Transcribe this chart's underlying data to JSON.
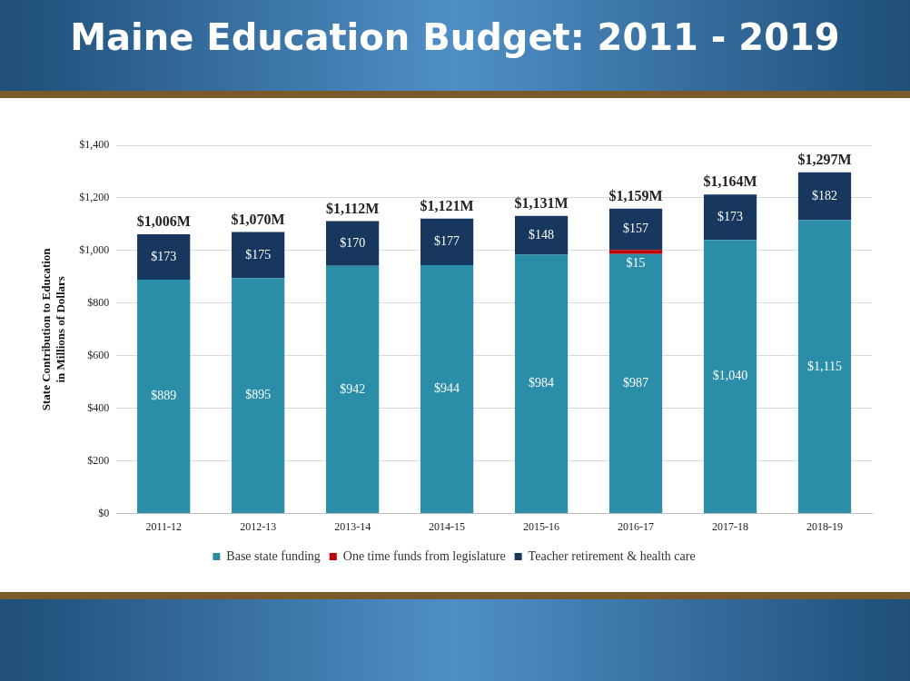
{
  "chart_data": {
    "type": "bar",
    "title": "Maine Education Budget: 2011 - 2019",
    "ylabel": "State Contribution to Education\nin Millions of Dollars",
    "stacked": true,
    "grid": "y",
    "legend": "bottom",
    "categories": [
      "2011-12",
      "2012-13",
      "2013-14",
      "2014-15",
      "2015-16",
      "2016-17",
      "2017-18",
      "2018-19"
    ],
    "ylim": [
      0,
      1400
    ],
    "yticks": [
      {
        "value": 0,
        "label": "$0"
      },
      {
        "value": 200,
        "label": "$200"
      },
      {
        "value": 400,
        "label": "$400"
      },
      {
        "value": 600,
        "label": "$600"
      },
      {
        "value": 800,
        "label": "$800"
      },
      {
        "value": 1000,
        "label": "$1,000"
      },
      {
        "value": 1200,
        "label": "$1,200"
      },
      {
        "value": 1400,
        "label": "$1,400"
      }
    ],
    "series": [
      {
        "name": "Base state funding",
        "color": "#2a8ea8",
        "values": [
          889,
          895,
          942,
          944,
          984,
          987,
          1040,
          1115
        ],
        "value_labels": [
          "$889",
          "$895",
          "$942",
          "$944",
          "$984",
          "$987",
          "$1,040",
          "$1,115"
        ]
      },
      {
        "name": "One time funds from legislature",
        "color": "#c00000",
        "values": [
          null,
          null,
          null,
          null,
          null,
          15,
          null,
          null
        ],
        "value_labels": [
          null,
          null,
          null,
          null,
          null,
          "$15",
          null,
          null
        ]
      },
      {
        "name": "Teacher retirement & health care",
        "color": "#17375e",
        "values": [
          173,
          175,
          170,
          177,
          148,
          157,
          173,
          182
        ],
        "value_labels": [
          "$173",
          "$175",
          "$170",
          "$177",
          "$148",
          "$157",
          "$173",
          "$182"
        ]
      }
    ],
    "annotations": [
      {
        "text": "$1,006M",
        "x": "2011-12",
        "y": 1062
      },
      {
        "text": "$1,070M",
        "x": "2012-13",
        "y": 1070
      },
      {
        "text": "$1,112M",
        "x": "2013-14",
        "y": 1112
      },
      {
        "text": "$1,121M",
        "x": "2014-15",
        "y": 1121
      },
      {
        "text": "$1,131M",
        "x": "2015-16",
        "y": 1132
      },
      {
        "text": "$1,159M",
        "x": "2016-17",
        "y": 1159
      },
      {
        "text": "$1,164M",
        "x": "2017-18",
        "y": 1213
      },
      {
        "text": "$1,297M",
        "x": "2018-19",
        "y": 1297
      }
    ]
  }
}
